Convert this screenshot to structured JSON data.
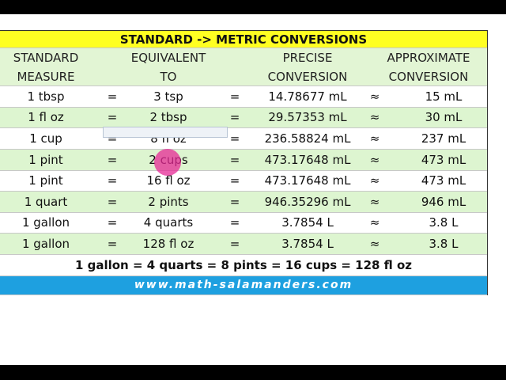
{
  "table": {
    "title": "STANDARD -> METRIC CONVERSIONS",
    "headers": [
      [
        "STANDARD",
        "MEASURE"
      ],
      [
        "EQUIVALENT",
        "TO"
      ],
      [
        "PRECISE",
        "CONVERSION"
      ],
      [
        "APPROXIMATE",
        "CONVERSION"
      ]
    ],
    "rows": [
      [
        "1 tbsp",
        "=",
        "3 tsp",
        "=",
        "14.78677 mL",
        "≈",
        "15 mL"
      ],
      [
        "1 fl oz",
        "=",
        "2 tbsp",
        "=",
        "29.57353 mL",
        "≈",
        "30 mL"
      ],
      [
        "1 cup",
        "=",
        "8 fl oz",
        "=",
        "236.58824 mL",
        "≈",
        "237 mL"
      ],
      [
        "1 pint",
        "=",
        "2 cups",
        "=",
        "473.17648 mL",
        "≈",
        "473 mL"
      ],
      [
        "1 pint",
        "=",
        "16 fl oz",
        "=",
        "473.17648 mL",
        "≈",
        "473 mL"
      ],
      [
        "1 quart",
        "=",
        "2 pints",
        "=",
        "946.35296 mL",
        "≈",
        "946 mL"
      ],
      [
        "1 gallon",
        "=",
        "4 quarts",
        "=",
        "3.7854 L",
        "≈",
        "3.8 L"
      ],
      [
        "1 gallon",
        "=",
        "128 fl oz",
        "=",
        "3.7854 L",
        "≈",
        "3.8 L"
      ]
    ],
    "summary": "1 gallon = 4 quarts = 8 pints = 16 cups = 128 fl oz",
    "footer": "www.math-salamanders.com"
  }
}
